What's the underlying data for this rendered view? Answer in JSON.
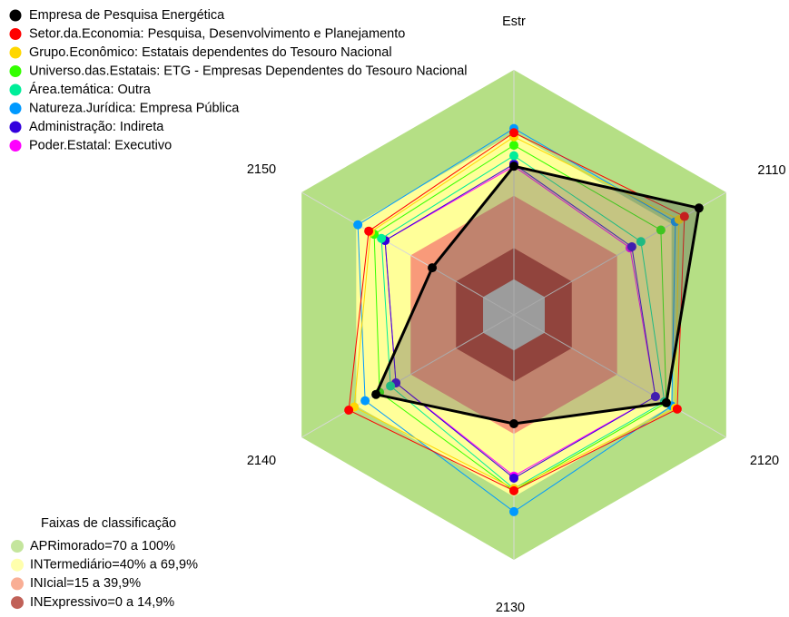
{
  "chart_data": {
    "type": "radar",
    "categories": [
      "Estr",
      "2110",
      "2120",
      "2130",
      "2140",
      "2150"
    ],
    "ylim": [
      -17,
      100
    ],
    "grid": true,
    "series": [
      {
        "name": "Empresa de Pesquisa Energética",
        "color": "#000000",
        "values": [
          54,
          85,
          67,
          35,
          59,
          28
        ]
      },
      {
        "name": "Setor.da.Economia: Pesquisa, Desenvolvimento e Planejamento",
        "color": "#ff0000",
        "values": [
          70,
          77,
          73,
          67,
          74,
          63
        ]
      },
      {
        "name": "Grupo.Econômico: Estatais dependentes do Tesouro Nacional",
        "color": "#ffd700",
        "values": [
          68,
          74,
          72,
          66,
          71,
          62
        ]
      },
      {
        "name": "Universo.das.Estatais: ETG - Empresas Dependentes do Tesouro Nacional",
        "color": "#33ff00",
        "values": [
          64,
          64,
          67,
          67,
          57,
          60
        ]
      },
      {
        "name": "Área.temática: Outra",
        "color": "#00ee99",
        "values": [
          59,
          53,
          66,
          66,
          51,
          56
        ]
      },
      {
        "name": "Natureza.Jurídica: Empresa Pública",
        "color": "#0099ff",
        "values": [
          72,
          72,
          70,
          77,
          65,
          69
        ]
      },
      {
        "name": "Administração: Indireta",
        "color": "#3300dd",
        "values": [
          55,
          48,
          61,
          61,
          48,
          54
        ]
      },
      {
        "name": "Poder.Estatal: Executivo",
        "color": "#ff00ff",
        "values": [
          54,
          47,
          61,
          60,
          48,
          54
        ]
      }
    ],
    "bands_title": "Faixas de classificação",
    "bands": [
      {
        "label": "APRimorado=70 a 100%",
        "color": "#b5df85",
        "from": 70,
        "to": 100
      },
      {
        "label": "INTermediário=40% a 69,9%",
        "color": "#ffff99",
        "from": 40,
        "to": 69.9
      },
      {
        "label": "INIcial=15 a 39,9%",
        "color": "#f89a7a",
        "from": 15,
        "to": 39.9
      },
      {
        "label": "INExpressivo=0 a 14,9%",
        "color": "#b03a2e",
        "from": 0,
        "to": 14.9
      }
    ]
  }
}
